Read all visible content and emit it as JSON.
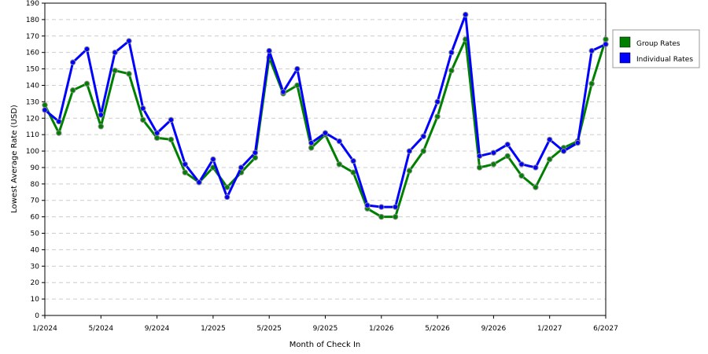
{
  "chart_data": {
    "type": "line",
    "title": "",
    "xlabel": "Month of Check In",
    "ylabel": "Lowest Average Rate (USD)",
    "ylim": [
      0,
      190
    ],
    "ytick_step": 10,
    "grid": true,
    "legend_position": "right",
    "x_ticks": [
      "1/2024",
      "5/2024",
      "9/2024",
      "1/2025",
      "5/2025",
      "9/2025",
      "1/2026",
      "5/2026",
      "9/2026",
      "1/2027",
      "6/2027"
    ],
    "x_tick_index": [
      0,
      4,
      8,
      12,
      16,
      20,
      24,
      28,
      32,
      36,
      40
    ],
    "series": [
      {
        "name": "Group Rates",
        "color": "#008000",
        "values": [
          128,
          111,
          137,
          141,
          115,
          149,
          147,
          119,
          108,
          107,
          87,
          81,
          90,
          78,
          87,
          96,
          157,
          135,
          140,
          102,
          110,
          92,
          87,
          65,
          60,
          60,
          88,
          100,
          121,
          149,
          168,
          90,
          92,
          97,
          85,
          78,
          95,
          102,
          106,
          141,
          168
        ]
      },
      {
        "name": "Individual Rates",
        "color": "#0000ff",
        "values": [
          125,
          118,
          154,
          162,
          122,
          160,
          167,
          126,
          111,
          119,
          92,
          81,
          95,
          72,
          90,
          99,
          161,
          136,
          150,
          105,
          111,
          106,
          94,
          67,
          66,
          66,
          100,
          109,
          130,
          160,
          183,
          97,
          99,
          104,
          92,
          90,
          107,
          100,
          105,
          161,
          165
        ]
      }
    ]
  }
}
